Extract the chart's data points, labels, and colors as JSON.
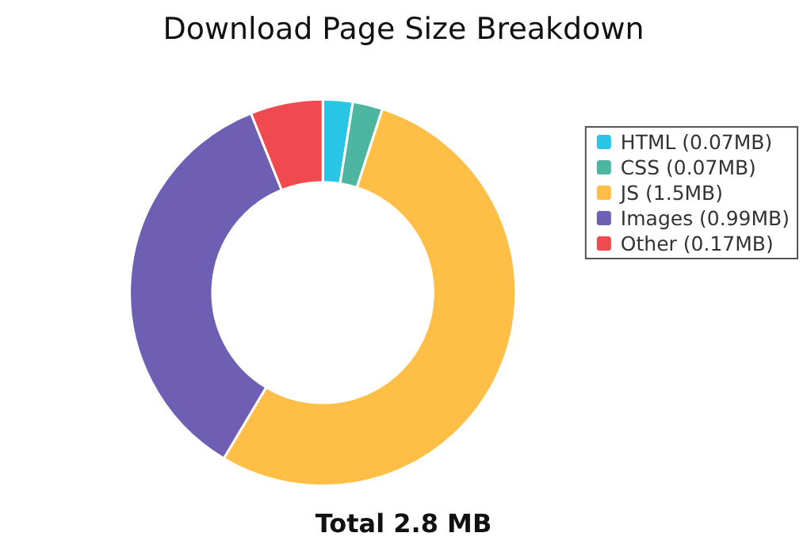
{
  "chart_data": {
    "type": "donut",
    "title": "Download Page Size Breakdown",
    "categories": [
      "HTML (0.07MB)",
      "CSS (0.07MB)",
      "JS (1.5MB)",
      "Images (0.99MB)",
      "Other (0.17MB)"
    ],
    "values": [
      0.07,
      0.07,
      1.5,
      0.99,
      0.17
    ],
    "colors": [
      "#29c5e6",
      "#4db6a0",
      "#ffbe45",
      "#6e5fb5",
      "#ef4a4f"
    ],
    "annotations": [
      "Total 2.8 MB"
    ],
    "legend": "top right"
  }
}
